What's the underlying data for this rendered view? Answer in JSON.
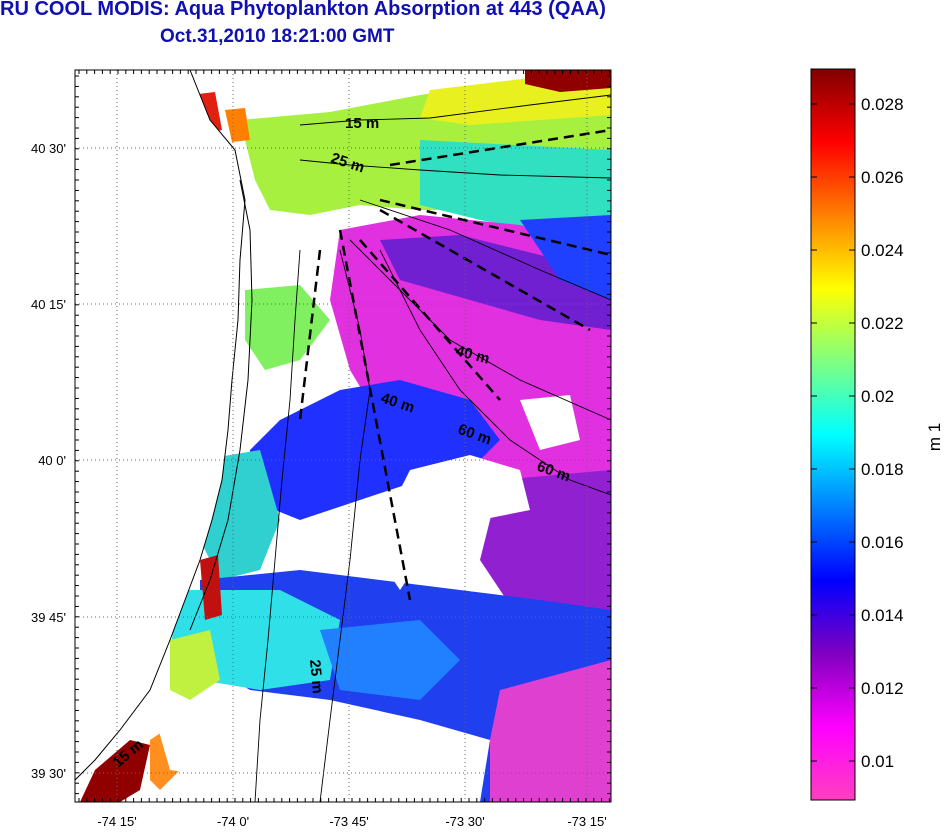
{
  "header": {
    "title": "RU COOL MODIS: Aqua Phytoplankton Absorption at 443 (QAA)",
    "subtitle": "Oct.31,2010 18:21:00 GMT"
  },
  "map": {
    "lon_ticks": [
      "-74 15'",
      "-74 0'",
      "-73 45'",
      "-73 30'",
      "-73 15'"
    ],
    "lat_ticks": [
      "40 30'",
      "40 15'",
      "40 0'",
      "39 45'",
      "39 30'"
    ],
    "contour_labels": [
      "15 m",
      "25 m",
      "40 m",
      "40 m",
      "60 m",
      "60 m",
      "25 m",
      "15 m"
    ]
  },
  "colorbar": {
    "unit": "m 1",
    "ticks": [
      "0.028",
      "0.026",
      "0.024",
      "0.022",
      "0.02",
      "0.018",
      "0.016",
      "0.014",
      "0.012",
      "0.01"
    ],
    "colors": [
      "#800000",
      "#ff0000",
      "#ff8000",
      "#ffff00",
      "#80ff80",
      "#00ffff",
      "#0080ff",
      "#0000ff",
      "#8000c0",
      "#ff00ff",
      "#ff40c0"
    ]
  }
}
